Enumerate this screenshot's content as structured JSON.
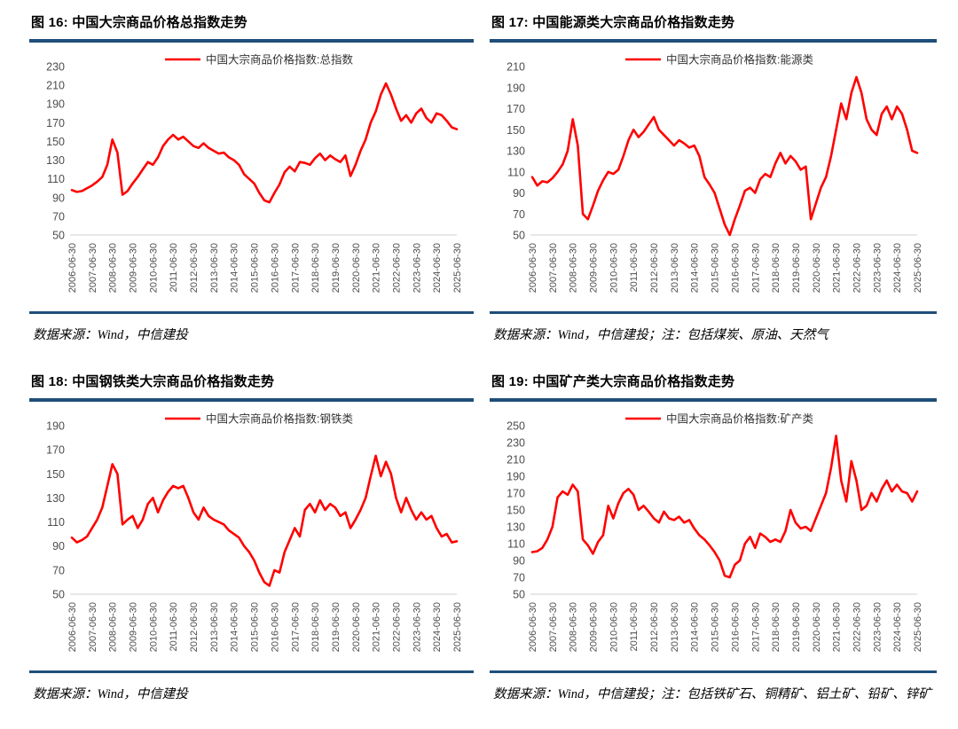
{
  "colors": {
    "line": "#FF0000",
    "rule": "#1F4E79",
    "axis_text": "#4D4D4D",
    "baseline": "#D9D9D9",
    "legend_text": "#333333",
    "title_text": "#000000"
  },
  "figures": [
    {
      "id": "figure-16",
      "title": "图 16: 中国大宗商品价格总指数走势",
      "source": "数据来源：Wind，中信建投"
    },
    {
      "id": "figure-17",
      "title": "图 17: 中国能源类大宗商品价格指数走势",
      "source": "数据来源：Wind，中信建投；注：包括煤炭、原油、天然气"
    },
    {
      "id": "figure-18",
      "title": "图 18: 中国钢铁类大宗商品价格指数走势",
      "source": "数据来源：Wind，中信建投"
    },
    {
      "id": "figure-19",
      "title": "图 19: 中国矿产类大宗商品价格指数走势",
      "source": "数据来源：Wind，中信建投；注：包括铁矿石、铜精矿、铝土矿、铅矿、锌矿"
    }
  ],
  "chart_data": [
    {
      "type": "line",
      "title": "图 16: 中国大宗商品价格总指数走势",
      "legend": [
        "中国大宗商品价格指数:总指数"
      ],
      "legend_position": "top-center",
      "grid": false,
      "ylim": [
        50,
        230
      ],
      "ytick_step": 20,
      "xlabel": "",
      "ylabel": "",
      "categories": [
        "2006-06-30",
        "2007-06-30",
        "2008-06-30",
        "2009-06-30",
        "2010-06-30",
        "2011-06-30",
        "2012-06-30",
        "2013-06-30",
        "2014-06-30",
        "2015-06-30",
        "2016-06-30",
        "2017-06-30",
        "2018-06-30",
        "2019-06-30",
        "2020-06-30",
        "2021-06-30",
        "2022-06-30",
        "2023-06-30",
        "2024-06-30",
        "2025-06-30"
      ],
      "series": [
        {
          "name": "中国大宗商品价格指数:总指数",
          "values": [
            98,
            96,
            97,
            100,
            103,
            107,
            112,
            125,
            152,
            138,
            93,
            97,
            105,
            112,
            120,
            128,
            125,
            133,
            145,
            152,
            157,
            152,
            155,
            150,
            145,
            143,
            148,
            143,
            140,
            137,
            138,
            133,
            130,
            125,
            115,
            110,
            105,
            95,
            87,
            85,
            95,
            104,
            117,
            123,
            118,
            128,
            127,
            125,
            132,
            137,
            130,
            135,
            131,
            128,
            135,
            113,
            125,
            140,
            152,
            170,
            182,
            200,
            212,
            200,
            185,
            172,
            178,
            170,
            180,
            185,
            175,
            170,
            180,
            178,
            172,
            165,
            163
          ]
        }
      ]
    },
    {
      "type": "line",
      "title": "图 17: 中国能源类大宗商品价格指数走势",
      "legend": [
        "中国大宗商品价格指数:能源类"
      ],
      "legend_position": "top-center",
      "grid": false,
      "ylim": [
        50,
        210
      ],
      "ytick_step": 20,
      "xlabel": "",
      "ylabel": "",
      "categories": [
        "2006-06-30",
        "2007-06-30",
        "2008-06-30",
        "2009-06-30",
        "2010-06-30",
        "2011-06-30",
        "2012-06-30",
        "2013-06-30",
        "2014-06-30",
        "2015-06-30",
        "2016-06-30",
        "2017-06-30",
        "2018-06-30",
        "2019-06-30",
        "2020-06-30",
        "2021-06-30",
        "2022-06-30",
        "2023-06-30",
        "2024-06-30",
        "2025-06-30"
      ],
      "series": [
        {
          "name": "中国大宗商品价格指数:能源类",
          "values": [
            105,
            97,
            101,
            100,
            104,
            110,
            117,
            130,
            160,
            135,
            70,
            65,
            78,
            92,
            102,
            110,
            108,
            112,
            125,
            140,
            150,
            143,
            148,
            155,
            162,
            150,
            145,
            140,
            135,
            140,
            137,
            133,
            135,
            125,
            105,
            98,
            90,
            75,
            60,
            50,
            65,
            78,
            92,
            95,
            90,
            103,
            108,
            105,
            118,
            128,
            118,
            125,
            120,
            112,
            115,
            65,
            80,
            95,
            105,
            125,
            150,
            175,
            160,
            185,
            200,
            185,
            160,
            150,
            145,
            165,
            172,
            160,
            172,
            165,
            150,
            130,
            128
          ]
        }
      ]
    },
    {
      "type": "line",
      "title": "图 18: 中国钢铁类大宗商品价格指数走势",
      "legend": [
        "中国大宗商品价格指数:钢铁类"
      ],
      "legend_position": "top-center",
      "grid": false,
      "ylim": [
        50,
        190
      ],
      "ytick_step": 20,
      "xlabel": "",
      "ylabel": "",
      "categories": [
        "2006-06-30",
        "2007-06-30",
        "2008-06-30",
        "2009-06-30",
        "2010-06-30",
        "2011-06-30",
        "2012-06-30",
        "2013-06-30",
        "2014-06-30",
        "2015-06-30",
        "2016-06-30",
        "2017-06-30",
        "2018-06-30",
        "2019-06-30",
        "2020-06-30",
        "2021-06-30",
        "2022-06-30",
        "2023-06-30",
        "2024-06-30",
        "2025-06-30"
      ],
      "series": [
        {
          "name": "中国大宗商品价格指数:钢铁类",
          "values": [
            97,
            93,
            95,
            98,
            105,
            112,
            122,
            140,
            158,
            150,
            108,
            112,
            115,
            105,
            112,
            125,
            130,
            118,
            128,
            135,
            140,
            138,
            140,
            130,
            118,
            112,
            122,
            115,
            112,
            110,
            108,
            103,
            100,
            97,
            90,
            85,
            78,
            68,
            60,
            57,
            70,
            68,
            85,
            95,
            105,
            98,
            120,
            125,
            118,
            128,
            120,
            125,
            122,
            115,
            118,
            105,
            112,
            120,
            130,
            148,
            165,
            148,
            160,
            150,
            130,
            118,
            130,
            120,
            112,
            118,
            112,
            115,
            105,
            98,
            100,
            93,
            94
          ]
        }
      ]
    },
    {
      "type": "line",
      "title": "图 19: 中国矿产类大宗商品价格指数走势",
      "legend": [
        "中国大宗商品价格指数:矿产类"
      ],
      "legend_position": "top-center",
      "grid": false,
      "ylim": [
        50,
        250
      ],
      "ytick_step": 20,
      "xlabel": "",
      "ylabel": "",
      "categories": [
        "2006-06-30",
        "2007-06-30",
        "2008-06-30",
        "2009-06-30",
        "2010-06-30",
        "2011-06-30",
        "2012-06-30",
        "2013-06-30",
        "2014-06-30",
        "2015-06-30",
        "2016-06-30",
        "2017-06-30",
        "2018-06-30",
        "2019-06-30",
        "2020-06-30",
        "2021-06-30",
        "2022-06-30",
        "2023-06-30",
        "2024-06-30",
        "2025-06-30"
      ],
      "series": [
        {
          "name": "中国大宗商品价格指数:矿产类",
          "values": [
            100,
            101,
            105,
            115,
            130,
            165,
            172,
            168,
            180,
            172,
            115,
            108,
            98,
            112,
            120,
            155,
            140,
            158,
            170,
            175,
            168,
            150,
            155,
            148,
            140,
            135,
            148,
            140,
            138,
            142,
            135,
            138,
            128,
            120,
            115,
            108,
            100,
            90,
            72,
            70,
            85,
            90,
            110,
            118,
            105,
            122,
            118,
            112,
            115,
            112,
            125,
            150,
            135,
            128,
            130,
            125,
            140,
            155,
            170,
            200,
            238,
            185,
            160,
            208,
            185,
            150,
            155,
            170,
            160,
            175,
            185,
            172,
            180,
            172,
            170,
            160,
            172
          ]
        }
      ]
    }
  ]
}
